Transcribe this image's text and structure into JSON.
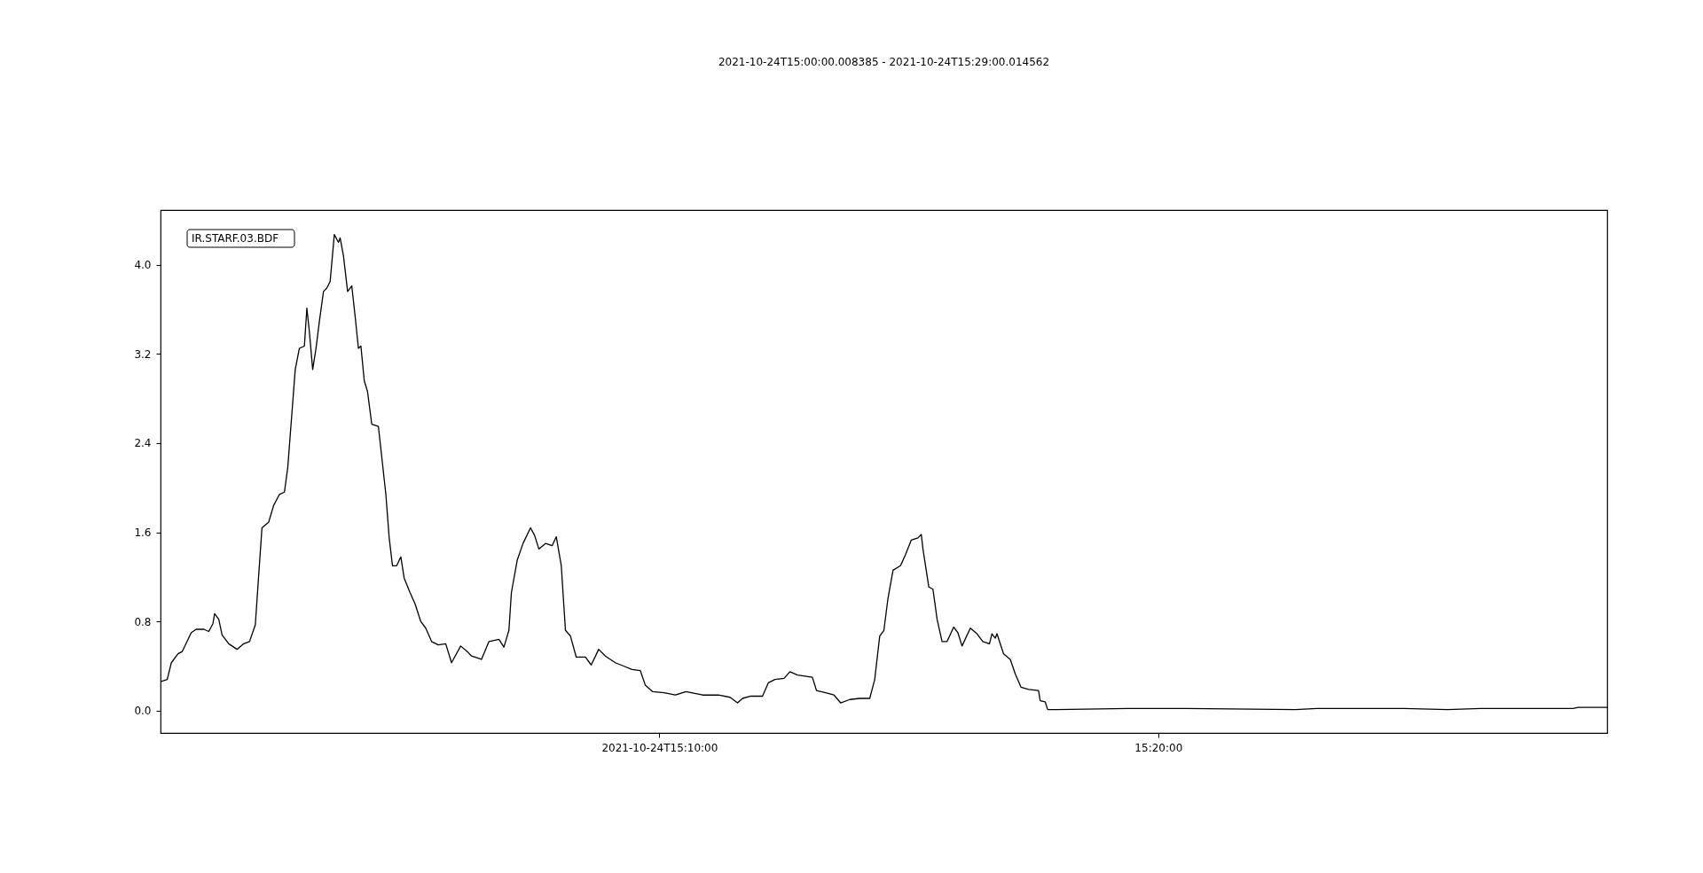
{
  "chart_data": {
    "type": "line",
    "title": "2021-10-24T15:00:00.008385  -  2021-10-24T15:29:00.014562",
    "annotations": [
      "IR.STARF.03.BDF"
    ],
    "x": [
      "2021-10-24T15:00:00",
      "2021-10-24T15:00:08",
      "2021-10-24T15:00:13",
      "2021-10-24T15:00:21",
      "2021-10-24T15:00:26",
      "2021-10-24T15:00:37",
      "2021-10-24T15:00:43",
      "2021-10-24T15:00:52",
      "2021-10-24T15:00:58",
      "2021-10-24T15:01:03",
      "2021-10-24T15:01:05",
      "2021-10-24T15:01:10",
      "2021-10-24T15:01:14",
      "2021-10-24T15:01:22",
      "2021-10-24T15:01:32",
      "2021-10-24T15:01:40",
      "2021-10-24T15:01:47",
      "2021-10-24T15:01:54",
      "2021-10-24T15:01:58",
      "2021-10-24T15:02:02",
      "2021-10-24T15:02:10",
      "2021-10-24T15:02:16",
      "2021-10-24T15:02:23",
      "2021-10-24T15:02:29",
      "2021-10-24T15:02:33",
      "2021-10-24T15:02:37",
      "2021-10-24T15:02:42",
      "2021-10-24T15:02:47",
      "2021-10-24T15:02:53",
      "2021-10-24T15:02:56",
      "2021-10-24T15:02:59",
      "2021-10-24T15:03:03",
      "2021-10-24T15:03:07",
      "2021-10-24T15:03:11",
      "2021-10-24T15:03:16",
      "2021-10-24T15:03:20",
      "2021-10-24T15:03:24",
      "2021-10-24T15:03:29",
      "2021-10-24T15:03:34",
      "2021-10-24T15:03:36",
      "2021-10-24T15:03:40",
      "2021-10-24T15:03:45",
      "2021-10-24T15:03:50",
      "2021-10-24T15:03:54",
      "2021-10-24T15:03:58",
      "2021-10-24T15:04:01",
      "2021-10-24T15:04:05",
      "2021-10-24T15:04:09",
      "2021-10-24T15:04:14",
      "2021-10-24T15:04:22",
      "2021-10-24T15:04:26",
      "2021-10-24T15:04:31",
      "2021-10-24T15:04:35",
      "2021-10-24T15:04:39",
      "2021-10-24T15:04:44",
      "2021-10-24T15:04:49",
      "2021-10-24T15:04:53",
      "2021-10-24T15:05:00",
      "2021-10-24T15:05:06",
      "2021-10-24T15:05:13",
      "2021-10-24T15:05:19",
      "2021-10-24T15:05:26",
      "2021-10-24T15:05:34",
      "2021-10-24T15:05:43",
      "2021-10-24T15:05:50",
      "2021-10-24T15:06:01",
      "2021-10-24T15:06:09",
      "2021-10-24T15:06:14",
      "2021-10-24T15:06:26",
      "2021-10-24T15:06:35",
      "2021-10-24T15:06:47",
      "2021-10-24T15:06:53",
      "2021-10-24T15:06:59",
      "2021-10-24T15:07:02",
      "2021-10-24T15:07:09",
      "2021-10-24T15:07:16",
      "2021-10-24T15:07:25",
      "2021-10-24T15:07:30",
      "2021-10-24T15:07:35",
      "2021-10-24T15:07:43",
      "2021-10-24T15:07:51",
      "2021-10-24T15:07:56",
      "2021-10-24T15:08:02",
      "2021-10-24T15:08:07",
      "2021-10-24T15:08:13",
      "2021-10-24T15:08:20",
      "2021-10-24T15:08:31",
      "2021-10-24T15:08:38",
      "2021-10-24T15:08:47",
      "2021-10-24T15:08:55",
      "2021-10-24T15:09:07",
      "2021-10-24T15:09:17",
      "2021-10-24T15:09:27",
      "2021-10-24T15:09:37",
      "2021-10-24T15:09:43",
      "2021-10-24T15:09:52",
      "2021-10-24T15:10:06",
      "2021-10-24T15:10:19",
      "2021-10-24T15:10:32",
      "2021-10-24T15:10:52",
      "2021-10-24T15:11:11",
      "2021-10-24T15:11:25",
      "2021-10-24T15:11:34",
      "2021-10-24T15:11:40",
      "2021-10-24T15:11:50",
      "2021-10-24T15:12:04",
      "2021-10-24T15:12:11",
      "2021-10-24T15:12:19",
      "2021-10-24T15:12:30",
      "2021-10-24T15:12:37",
      "2021-10-24T15:12:46",
      "2021-10-24T15:13:04",
      "2021-10-24T15:13:09",
      "2021-10-24T15:13:20",
      "2021-10-24T15:13:30",
      "2021-10-24T15:13:38",
      "2021-10-24T15:13:49",
      "2021-10-24T15:14:01",
      "2021-10-24T15:14:13",
      "2021-10-24T15:14:19",
      "2021-10-24T15:14:25",
      "2021-10-24T15:14:30",
      "2021-10-24T15:14:35",
      "2021-10-24T15:14:41",
      "2021-10-24T15:14:50",
      "2021-10-24T15:14:56",
      "2021-10-24T15:15:03",
      "2021-10-24T15:15:11",
      "2021-10-24T15:15:15",
      "2021-10-24T15:15:17",
      "2021-10-24T15:15:24",
      "2021-10-24T15:15:29",
      "2021-10-24T15:15:34",
      "2021-10-24T15:15:40",
      "2021-10-24T15:15:46",
      "2021-10-24T15:15:54",
      "2021-10-24T15:15:59",
      "2021-10-24T15:16:04",
      "2021-10-24T15:16:14",
      "2021-10-24T15:16:22",
      "2021-10-24T15:16:29",
      "2021-10-24T15:16:37",
      "2021-10-24T15:16:40",
      "2021-10-24T15:16:44",
      "2021-10-24T15:16:46",
      "2021-10-24T15:16:54",
      "2021-10-24T15:17:02",
      "2021-10-24T15:17:08",
      "2021-10-24T15:17:15",
      "2021-10-24T15:17:24",
      "2021-10-24T15:17:36",
      "2021-10-24T15:17:38",
      "2021-10-24T15:17:44",
      "2021-10-24T15:17:47",
      "2021-10-24T15:17:57",
      "2021-10-24T15:19:29",
      "2021-10-24T15:20:34",
      "2021-10-24T15:22:45",
      "2021-10-24T15:23:11",
      "2021-10-24T15:24:56",
      "2021-10-24T15:25:48",
      "2021-10-24T15:26:28",
      "2021-10-24T15:28:19",
      "2021-10-24T15:28:25",
      "2021-10-24T15:29:00"
    ],
    "series": [
      {
        "color": "#000000",
        "values": [
          0.26,
          0.28,
          0.43,
          0.51,
          0.53,
          0.7,
          0.73,
          0.73,
          0.71,
          0.78,
          0.87,
          0.82,
          0.68,
          0.6,
          0.55,
          0.6,
          0.62,
          0.77,
          1.21,
          1.64,
          1.69,
          1.84,
          1.94,
          1.96,
          2.18,
          2.57,
          3.06,
          3.25,
          3.27,
          3.61,
          3.4,
          3.06,
          3.25,
          3.49,
          3.76,
          3.79,
          3.85,
          4.27,
          4.2,
          4.24,
          4.08,
          3.76,
          3.81,
          3.54,
          3.25,
          3.27,
          2.96,
          2.86,
          2.57,
          2.55,
          2.28,
          1.94,
          1.55,
          1.3,
          1.3,
          1.38,
          1.19,
          1.06,
          0.96,
          0.8,
          0.74,
          0.62,
          0.59,
          0.6,
          0.43,
          0.58,
          0.53,
          0.49,
          0.46,
          0.62,
          0.64,
          0.57,
          0.72,
          1.06,
          1.35,
          1.5,
          1.64,
          1.57,
          1.45,
          1.5,
          1.48,
          1.56,
          1.3,
          0.72,
          0.67,
          0.48,
          0.48,
          0.41,
          0.55,
          0.49,
          0.43,
          0.4,
          0.37,
          0.36,
          0.23,
          0.17,
          0.16,
          0.14,
          0.17,
          0.14,
          0.14,
          0.12,
          0.07,
          0.11,
          0.13,
          0.13,
          0.25,
          0.28,
          0.29,
          0.35,
          0.32,
          0.3,
          0.18,
          0.16,
          0.14,
          0.07,
          0.1,
          0.11,
          0.11,
          0.28,
          0.67,
          0.72,
          1.01,
          1.26,
          1.3,
          1.4,
          1.53,
          1.55,
          1.58,
          1.45,
          1.11,
          1.09,
          0.82,
          0.62,
          0.62,
          0.75,
          0.7,
          0.58,
          0.74,
          0.69,
          0.62,
          0.6,
          0.69,
          0.65,
          0.69,
          0.51,
          0.46,
          0.33,
          0.21,
          0.19,
          0.18,
          0.09,
          0.08,
          0.01,
          0.01,
          0.02,
          0.02,
          0.01,
          0.02,
          0.02,
          0.01,
          0.02,
          0.02,
          0.03,
          0.03
        ]
      }
    ],
    "xlim": [
      "2021-10-24T15:00:00",
      "2021-10-24T15:29:00"
    ],
    "xticks": [
      {
        "value": "2021-10-24T15:10:00",
        "label": "2021-10-24T15:10:00"
      },
      {
        "value": "2021-10-24T15:20:00",
        "label": "15:20:00"
      }
    ],
    "ylim": [
      -0.2,
      4.49
    ],
    "yticks": [
      {
        "value": 0,
        "label": "0.0"
      },
      {
        "value": 0.8,
        "label": "0.8"
      },
      {
        "value": 1.6,
        "label": "1.6"
      },
      {
        "value": 2.4,
        "label": "2.4"
      },
      {
        "value": 3.2,
        "label": "3.2"
      },
      {
        "value": 4,
        "label": "4.0"
      }
    ],
    "grid": false,
    "marker": "none",
    "line_style": "solid"
  }
}
